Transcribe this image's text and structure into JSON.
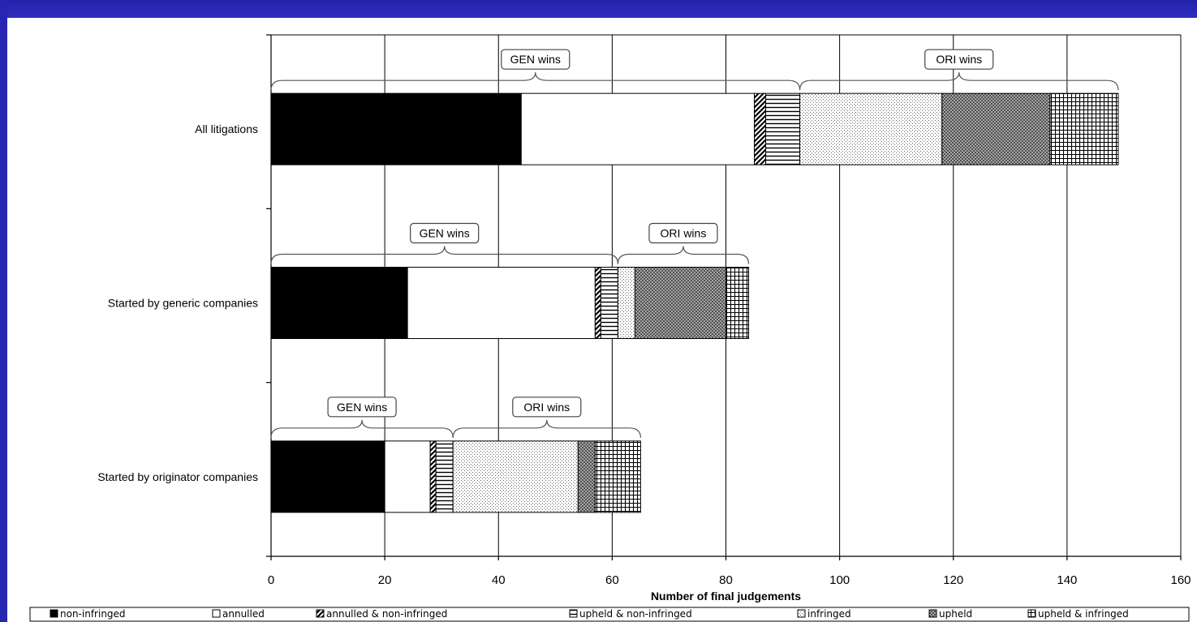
{
  "chart_data": {
    "type": "bar",
    "orientation": "horizontal",
    "stacked": true,
    "xlabel": "Number of final judgements",
    "xlim": [
      0,
      160
    ],
    "xticks": [
      "0",
      "20",
      "40",
      "60",
      "80",
      "100",
      "120",
      "140",
      "160"
    ],
    "grid": true,
    "legend_position": "bottom",
    "categories": [
      "All litigations",
      "Started by generic companies",
      "Started by originator companies"
    ],
    "series": [
      {
        "name": "non-infringed",
        "values": [
          44,
          24,
          20
        ],
        "pattern": "solid-black"
      },
      {
        "name": "annulled",
        "values": [
          41,
          33,
          8
        ],
        "pattern": "white"
      },
      {
        "name": "annulled & non-infringed",
        "values": [
          2,
          1,
          1
        ],
        "pattern": "diagonal-stripes"
      },
      {
        "name": "upheld & non-infringed",
        "values": [
          6,
          3,
          3
        ],
        "pattern": "horizontal-stripes"
      },
      {
        "name": "infringed",
        "values": [
          25,
          3,
          22
        ],
        "pattern": "fine-dots"
      },
      {
        "name": "upheld",
        "values": [
          19,
          16,
          3
        ],
        "pattern": "crosshatch-dark"
      },
      {
        "name": "upheld & infringed",
        "values": [
          12,
          4,
          8
        ],
        "pattern": "grid"
      }
    ],
    "annotations": [
      {
        "category": 0,
        "label": "GEN wins",
        "from": 0,
        "to": 93
      },
      {
        "category": 0,
        "label": "ORI wins",
        "from": 93,
        "to": 149
      },
      {
        "category": 1,
        "label": "GEN wins",
        "from": 0,
        "to": 61
      },
      {
        "category": 1,
        "label": "ORI wins",
        "from": 61,
        "to": 84
      },
      {
        "category": 2,
        "label": "GEN wins",
        "from": 0,
        "to": 32
      },
      {
        "category": 2,
        "label": "ORI wins",
        "from": 32,
        "to": 65
      }
    ]
  },
  "colors": {
    "background": "#2a2ab8",
    "plot": "#ffffff",
    "ink": "#000000"
  }
}
